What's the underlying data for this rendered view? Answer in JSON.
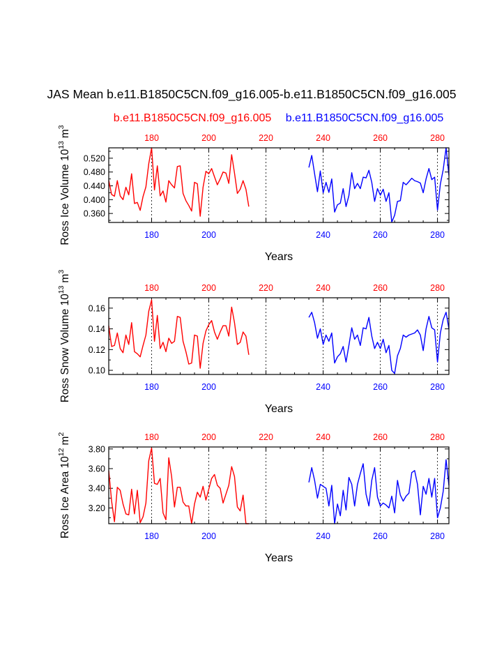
{
  "title": "JAS Mean b.e11.B1850C5CN.f09_g16.005-b.e11.B1850C5CN.f09_g16.005",
  "legend": {
    "left": {
      "label": "b.e11.B1850C5CN.f09_g16.005",
      "color": "#ff0000"
    },
    "right": {
      "label": "b.e11.B1850C5CN.f09_g16.005",
      "color": "#0000ff"
    }
  },
  "chart_data": [
    {
      "type": "line",
      "ylabel_main": "Ross Ice Volume 10",
      "ylabel_sup": "13",
      "ylabel_unit": "m",
      "ylabel_unit_sup": "3",
      "xlabel": "Years",
      "xlim": [
        165,
        284
      ],
      "ylim": [
        0.334,
        0.55
      ],
      "yticks": [
        "0.360",
        "0.400",
        "0.440",
        "0.480",
        "0.520"
      ],
      "xticks": [
        "180",
        "200",
        "220",
        "240",
        "260",
        "280"
      ],
      "grid_x": [
        180,
        200,
        220,
        240,
        260,
        280
      ],
      "series": [
        {
          "color": "#ff0000",
          "x_start": 165,
          "values": [
            0.456,
            0.415,
            0.41,
            0.455,
            0.411,
            0.4,
            0.436,
            0.414,
            0.475,
            0.389,
            0.392,
            0.369,
            0.409,
            0.437,
            0.504,
            0.55,
            0.428,
            0.498,
            0.411,
            0.425,
            0.393,
            0.455,
            0.443,
            0.434,
            0.496,
            0.498,
            0.418,
            0.397,
            0.383,
            0.367,
            0.45,
            0.446,
            0.352,
            0.436,
            0.482,
            0.475,
            0.49,
            0.466,
            0.443,
            0.46,
            0.48,
            0.477,
            0.447,
            0.53,
            0.477,
            0.418,
            0.43,
            0.455,
            0.43,
            0.38
          ]
        },
        {
          "color": "#0000ff",
          "x_start": 235,
          "values": [
            0.493,
            0.528,
            0.475,
            0.423,
            0.483,
            0.42,
            0.45,
            0.421,
            0.46,
            0.364,
            0.385,
            0.39,
            0.432,
            0.38,
            0.412,
            0.478,
            0.432,
            0.447,
            0.432,
            0.465,
            0.463,
            0.485,
            0.45,
            0.395,
            0.432,
            0.413,
            0.43,
            0.395,
            0.42,
            0.335,
            0.355,
            0.395,
            0.397,
            0.45,
            0.443,
            0.452,
            0.462,
            0.455,
            0.452,
            0.448,
            0.42,
            0.46,
            0.49,
            0.458,
            0.465,
            0.37,
            0.445,
            0.487,
            0.55,
            0.47
          ]
        }
      ]
    },
    {
      "type": "line",
      "ylabel_main": "Ross Snow Volume 10",
      "ylabel_sup": "13",
      "ylabel_unit": "m",
      "ylabel_unit_sup": "3",
      "xlabel": "Years",
      "xlim": [
        165,
        284
      ],
      "ylim": [
        0.096,
        0.17
      ],
      "yticks": [
        "0.10",
        "0.12",
        "0.14",
        "0.16"
      ],
      "xticks": [
        "180",
        "200",
        "220",
        "240",
        "260",
        "280"
      ],
      "grid_x": [
        180,
        200,
        220,
        240,
        260,
        280
      ],
      "series": [
        {
          "color": "#ff0000",
          "x_start": 165,
          "values": [
            0.143,
            0.123,
            0.124,
            0.136,
            0.121,
            0.117,
            0.134,
            0.125,
            0.146,
            0.118,
            0.116,
            0.113,
            0.124,
            0.134,
            0.157,
            0.168,
            0.128,
            0.153,
            0.121,
            0.127,
            0.118,
            0.131,
            0.126,
            0.128,
            0.152,
            0.151,
            0.128,
            0.118,
            0.106,
            0.107,
            0.134,
            0.133,
            0.102,
            0.126,
            0.138,
            0.144,
            0.148,
            0.137,
            0.13,
            0.137,
            0.143,
            0.143,
            0.133,
            0.161,
            0.146,
            0.125,
            0.127,
            0.137,
            0.133,
            0.115
          ]
        },
        {
          "color": "#0000ff",
          "x_start": 235,
          "values": [
            0.151,
            0.156,
            0.146,
            0.131,
            0.14,
            0.125,
            0.134,
            0.128,
            0.136,
            0.107,
            0.113,
            0.116,
            0.123,
            0.108,
            0.124,
            0.141,
            0.13,
            0.134,
            0.124,
            0.141,
            0.14,
            0.151,
            0.133,
            0.121,
            0.127,
            0.121,
            0.13,
            0.117,
            0.124,
            0.1,
            0.097,
            0.114,
            0.121,
            0.134,
            0.132,
            0.134,
            0.135,
            0.136,
            0.139,
            0.134,
            0.119,
            0.14,
            0.152,
            0.141,
            0.139,
            0.108,
            0.136,
            0.149,
            0.156,
            0.14
          ]
        }
      ]
    },
    {
      "type": "line",
      "ylabel_main": "Ross Ice Area 10",
      "ylabel_sup": "12",
      "ylabel_unit": "m",
      "ylabel_unit_sup": "2",
      "xlabel": "Years",
      "xlim": [
        165,
        284
      ],
      "ylim": [
        3.04,
        3.82
      ],
      "yticks": [
        "3.20",
        "3.40",
        "3.60",
        "3.80"
      ],
      "xticks": [
        "180",
        "200",
        "220",
        "240",
        "260",
        "280"
      ],
      "grid_x": [
        180,
        200,
        220,
        240,
        260,
        280
      ],
      "series": [
        {
          "color": "#ff0000",
          "x_start": 165,
          "values": [
            3.58,
            3.27,
            3.06,
            3.41,
            3.38,
            3.24,
            3.14,
            3.13,
            3.39,
            3.14,
            3.38,
            3.05,
            3.11,
            3.25,
            3.68,
            3.81,
            3.45,
            3.44,
            3.5,
            3.15,
            3.08,
            3.71,
            3.52,
            3.21,
            3.41,
            3.41,
            3.26,
            3.22,
            3.22,
            3.04,
            3.24,
            3.36,
            3.31,
            3.42,
            3.28,
            3.39,
            3.5,
            3.54,
            3.43,
            3.4,
            3.25,
            3.34,
            3.43,
            3.62,
            3.52,
            3.21,
            3.17,
            3.33,
            3.04,
            3.04
          ]
        },
        {
          "color": "#0000ff",
          "x_start": 235,
          "values": [
            3.46,
            3.61,
            3.48,
            3.3,
            3.44,
            3.42,
            3.4,
            3.22,
            3.43,
            3.04,
            3.24,
            3.12,
            3.38,
            3.18,
            3.51,
            3.44,
            3.22,
            3.44,
            3.55,
            3.65,
            3.34,
            3.22,
            3.48,
            3.61,
            3.31,
            3.22,
            3.25,
            3.23,
            3.2,
            3.32,
            3.15,
            3.48,
            3.33,
            3.27,
            3.32,
            3.35,
            3.56,
            3.58,
            3.44,
            3.13,
            3.42,
            3.34,
            3.5,
            3.31,
            3.5,
            3.1,
            3.2,
            3.37,
            3.69,
            3.43
          ]
        }
      ]
    }
  ]
}
